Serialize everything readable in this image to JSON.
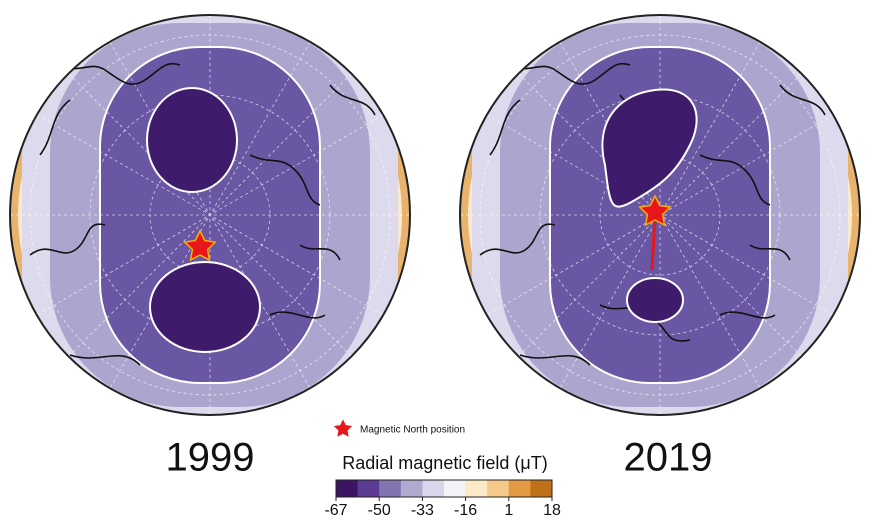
{
  "maps": [
    {
      "year": "1999"
    },
    {
      "year": "2019"
    }
  ],
  "legend": {
    "label": "Magnetic North position"
  },
  "colorbar": {
    "label": "Radial magnetic field (μT)",
    "ticks": [
      -67,
      -50,
      -33,
      -16,
      1,
      18
    ],
    "colors": [
      "#3b1464",
      "#5c3c93",
      "#8174b0",
      "#b0aad0",
      "#d8d6ea",
      "#f3f2f7",
      "#fce9c8",
      "#f5c98a",
      "#e39b43",
      "#c07118"
    ]
  }
}
